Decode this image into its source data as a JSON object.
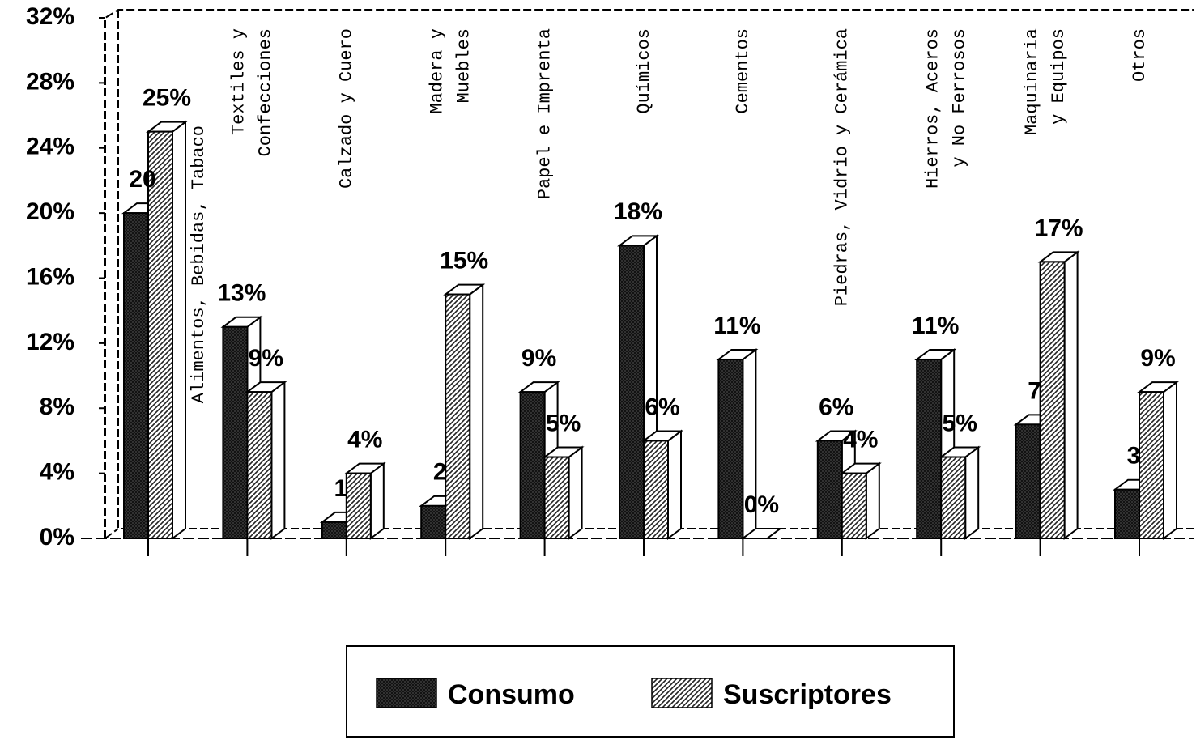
{
  "chart_data": {
    "type": "bar3d",
    "categories": [
      [
        "Alimentos, Bebidas, Tabaco"
      ],
      [
        "Textiles y",
        "Confecciones"
      ],
      [
        "Calzado y Cuero"
      ],
      [
        "Madera y",
        "Muebles"
      ],
      [
        "Papel e Imprenta"
      ],
      [
        "Químicos"
      ],
      [
        "Cementos"
      ],
      [
        "Piedras, Vidrio y Cerámica"
      ],
      [
        "Hierros, Aceros",
        "y No Ferrosos"
      ],
      [
        "Maquinaria",
        "y Equipos"
      ],
      [
        "Otros"
      ]
    ],
    "series": [
      {
        "name": "Consumo",
        "color": "#222222",
        "values": [
          20,
          13,
          1,
          2,
          9,
          18,
          11,
          6,
          11,
          7,
          3
        ],
        "value_labels": [
          "20",
          "13%",
          "1",
          "2",
          "9%",
          "18%",
          "11%",
          "6%",
          "11%",
          "7",
          "3"
        ]
      },
      {
        "name": "Suscriptores",
        "color": "#555555",
        "values": [
          25,
          9,
          4,
          15,
          5,
          6,
          0,
          4,
          5,
          17,
          9
        ],
        "value_labels": [
          "25%",
          "9%",
          "4%",
          "15%",
          "5%",
          "6%",
          "0%",
          "4%",
          "5%",
          "17%",
          "9%"
        ]
      }
    ],
    "ylim": [
      0,
      32
    ],
    "yticks": [
      {
        "value": 0,
        "label": "0%"
      },
      {
        "value": 4,
        "label": "4%"
      },
      {
        "value": 8,
        "label": "8%"
      },
      {
        "value": 12,
        "label": "12%"
      },
      {
        "value": 16,
        "label": "16%"
      },
      {
        "value": 20,
        "label": "20%"
      },
      {
        "value": 24,
        "label": "24%"
      },
      {
        "value": 28,
        "label": "28%"
      },
      {
        "value": 32,
        "label": "32%"
      }
    ]
  }
}
